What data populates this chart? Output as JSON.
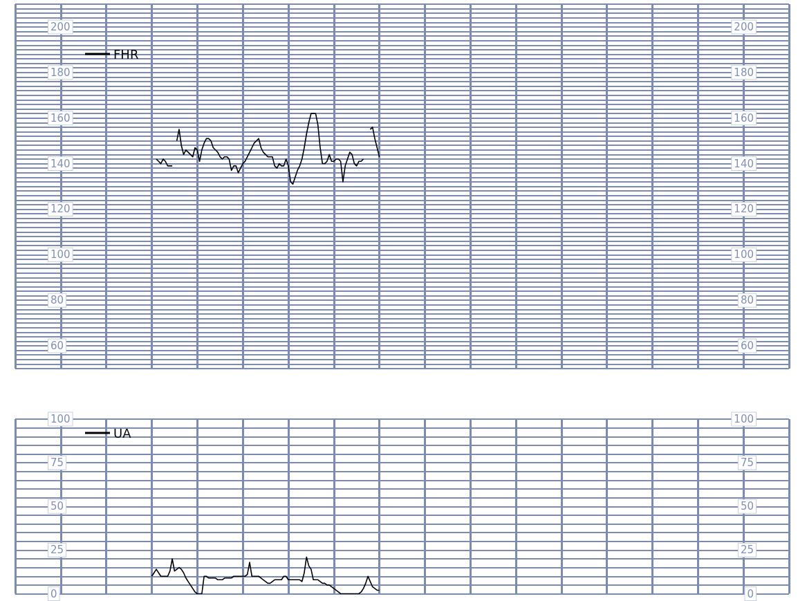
{
  "chart_data": [
    {
      "type": "line",
      "categories": [
        null,
        null,
        null,
        null,
        null,
        null,
        null,
        null,
        null,
        null,
        null,
        null,
        null,
        null,
        null,
        null,
        null,
        null,
        null,
        null,
        null,
        null,
        null,
        null,
        null,
        null,
        null,
        null,
        null,
        null,
        null,
        null,
        null,
        null,
        null,
        null,
        null,
        null,
        null,
        null,
        null,
        null,
        null,
        null,
        null,
        null,
        null,
        null,
        null,
        null,
        null,
        null,
        null,
        null,
        null,
        null,
        null,
        null,
        null,
        null,
        null,
        null,
        null,
        null,
        null,
        null,
        null,
        null,
        null,
        null,
        null,
        null,
        null,
        null,
        null,
        null,
        null,
        null,
        null,
        null,
        null,
        null,
        null,
        null,
        null,
        null,
        null,
        null,
        null,
        null,
        null,
        null,
        null,
        null,
        null,
        null,
        null,
        null,
        null,
        null,
        null,
        null,
        null,
        null,
        null,
        null,
        null,
        null,
        null,
        null,
        null,
        null,
        null,
        null,
        null,
        null,
        null,
        null,
        null,
        null,
        null,
        null,
        null,
        null,
        null,
        null,
        null,
        null,
        null,
        null,
        null,
        null,
        null,
        null,
        null,
        null,
        null,
        null,
        null,
        null,
        null,
        null,
        null,
        null,
        null,
        null,
        null,
        null,
        null,
        null,
        null,
        null,
        null,
        null,
        null,
        null,
        null,
        null,
        null,
        null,
        null,
        null,
        null,
        null,
        null,
        null,
        null,
        null,
        null,
        null,
        null,
        null,
        null,
        null,
        null,
        null,
        null,
        null,
        null,
        null,
        null,
        null,
        null,
        null,
        null,
        null,
        null,
        null,
        null,
        null,
        null,
        null,
        null,
        null,
        null,
        null,
        null,
        null,
        null,
        null,
        null,
        null,
        null,
        null,
        null,
        null,
        null,
        null,
        null,
        null,
        null,
        null,
        null,
        null,
        null,
        null,
        null,
        null,
        null,
        null,
        null,
        null,
        null,
        null,
        null,
        null,
        null,
        null,
        null,
        null,
        null,
        null,
        null,
        null,
        null,
        null,
        null,
        null,
        null,
        null,
        null,
        null,
        null,
        null,
        null,
        null,
        null,
        null,
        null,
        null,
        null,
        null,
        null,
        null,
        null,
        null,
        null,
        null,
        null,
        null,
        null,
        null,
        null,
        null,
        null,
        null,
        null,
        null,
        null,
        null,
        null,
        null,
        null,
        null,
        null,
        null,
        null,
        null,
        null,
        null,
        null,
        null,
        null,
        null,
        null,
        null,
        null,
        null,
        null,
        null,
        null,
        null,
        null,
        null,
        null,
        null,
        null,
        null,
        null,
        null,
        null,
        null,
        null,
        null,
        null,
        null,
        null,
        null,
        null,
        null,
        null,
        null,
        null,
        null,
        null,
        null,
        null,
        null,
        null,
        null,
        null,
        null,
        null,
        null,
        null,
        null,
        null,
        null,
        null,
        null,
        null,
        null,
        null,
        null,
        null,
        null,
        null,
        null,
        null,
        null,
        null
      ],
      "ylim": [
        50,
        210
      ],
      "yticks": [
        {
          "value": 50,
          "label": null
        },
        {
          "value": 52,
          "label": null
        },
        {
          "value": 54,
          "label": null
        },
        {
          "value": 56,
          "label": null
        },
        {
          "value": 58,
          "label": null
        },
        60,
        {
          "value": 62,
          "label": null
        },
        {
          "value": 64,
          "label": null
        },
        {
          "value": 66,
          "label": null
        },
        {
          "value": 68,
          "label": null
        },
        {
          "value": 70,
          "label": null
        },
        {
          "value": 72,
          "label": null
        },
        {
          "value": 74,
          "label": null
        },
        {
          "value": 76,
          "label": null
        },
        {
          "value": 78,
          "label": null
        },
        80,
        {
          "value": 82,
          "label": null
        },
        {
          "value": 84,
          "label": null
        },
        {
          "value": 86,
          "label": null
        },
        {
          "value": 88,
          "label": null
        },
        {
          "value": 90,
          "label": null
        },
        {
          "value": 92,
          "label": null
        },
        {
          "value": 94,
          "label": null
        },
        {
          "value": 96,
          "label": null
        },
        {
          "value": 98,
          "label": null
        },
        100,
        {
          "value": 102,
          "label": null
        },
        {
          "value": 104,
          "label": null
        },
        {
          "value": 106,
          "label": null
        },
        {
          "value": 108,
          "label": null
        },
        {
          "value": 110,
          "label": null
        },
        {
          "value": 112,
          "label": null
        },
        {
          "value": 114,
          "label": null
        },
        {
          "value": 116,
          "label": null
        },
        {
          "value": 118,
          "label": null
        },
        120,
        {
          "value": 122,
          "label": null
        },
        {
          "value": 124,
          "label": null
        },
        {
          "value": 126,
          "label": null
        },
        {
          "value": 128,
          "label": null
        },
        {
          "value": 130,
          "label": null
        },
        {
          "value": 132,
          "label": null
        },
        {
          "value": 134,
          "label": null
        },
        {
          "value": 136,
          "label": null
        },
        {
          "value": 138,
          "label": null
        },
        140,
        {
          "value": 142,
          "label": null
        },
        {
          "value": 144,
          "label": null
        },
        {
          "value": 146,
          "label": null
        },
        {
          "value": 148,
          "label": null
        },
        {
          "value": 150,
          "label": null
        },
        {
          "value": 152,
          "label": null
        },
        {
          "value": 154,
          "label": null
        },
        {
          "value": 156,
          "label": null
        },
        {
          "value": 158,
          "label": null
        },
        160,
        {
          "value": 162,
          "label": null
        },
        {
          "value": 164,
          "label": null
        },
        {
          "value": 166,
          "label": null
        },
        {
          "value": 168,
          "label": null
        },
        {
          "value": 170,
          "label": null
        },
        {
          "value": 172,
          "label": null
        },
        {
          "value": 174,
          "label": null
        },
        {
          "value": 176,
          "label": null
        },
        {
          "value": 178,
          "label": null
        },
        180,
        {
          "value": 182,
          "label": null
        },
        {
          "value": 184,
          "label": null
        },
        {
          "value": 186,
          "label": null
        },
        {
          "value": 188,
          "label": null
        },
        {
          "value": 190,
          "label": null
        },
        {
          "value": 192,
          "label": null
        },
        {
          "value": 194,
          "label": null
        },
        {
          "value": 196,
          "label": null
        },
        {
          "value": 198,
          "label": null
        },
        200,
        {
          "value": 202,
          "label": null
        },
        {
          "value": 204,
          "label": null
        },
        {
          "value": 206,
          "label": null
        },
        {
          "value": 208,
          "label": null
        },
        {
          "value": 210,
          "label": null
        }
      ],
      "y2lim": [
        50,
        210
      ],
      "y2ticks": [
        60,
        80,
        100,
        120,
        140,
        160,
        180,
        200
      ],
      "tick_labels": "y",
      "grid": true,
      "legend": "top left",
      "marker": "none",
      "line_style": "solid",
      "series": [
        {
          "name": "FHR",
          "color": "#000000",
          "values": [
            null,
            null,
            null,
            null,
            null,
            null,
            null,
            null,
            null,
            null,
            null,
            null,
            null,
            null,
            null,
            null,
            null,
            null,
            null,
            null,
            null,
            null,
            null,
            null,
            null,
            null,
            null,
            null,
            null,
            null,
            null,
            null,
            null,
            null,
            null,
            null,
            null,
            null,
            null,
            null,
            null,
            null,
            null,
            null,
            null,
            null,
            null,
            null,
            null,
            null,
            null,
            null,
            null,
            null,
            null,
            null,
            null,
            null,
            null,
            null,
            null,
            null,
            142,
            141,
            140,
            142,
            141,
            139,
            139,
            139,
            null,
            150,
            155,
            148,
            144,
            146,
            145,
            144,
            143,
            147,
            146,
            141,
            146,
            149,
            151,
            151,
            150,
            147,
            146,
            145,
            143,
            142,
            143,
            143,
            142,
            137,
            139,
            139,
            136,
            138,
            140,
            141,
            143,
            145,
            147,
            149,
            150,
            151,
            147,
            145,
            144,
            143,
            143,
            143,
            139,
            138,
            140,
            139,
            139,
            142,
            139,
            132,
            131,
            134,
            137,
            139,
            142,
            147,
            153,
            158,
            162,
            162,
            162,
            157,
            147,
            140,
            140,
            141,
            144,
            141,
            141,
            142,
            142,
            141,
            132,
            139,
            142,
            145,
            144,
            140,
            139,
            141,
            141,
            142,
            null,
            null,
            155,
            156,
            151,
            147,
            143,
            null,
            null,
            null,
            null,
            null,
            null,
            null,
            null,
            null,
            null,
            null,
            null,
            null,
            null,
            null,
            null,
            null,
            null,
            null,
            null,
            null,
            null,
            null,
            null,
            null,
            null,
            null,
            null,
            null,
            null,
            null,
            null,
            null,
            null,
            null,
            null,
            null,
            null,
            null,
            null,
            null,
            null,
            null,
            null,
            null,
            null,
            null,
            null,
            null,
            null,
            null,
            null,
            null,
            null,
            null,
            null,
            null,
            null,
            null,
            null,
            null,
            null,
            null,
            null,
            null,
            null,
            null,
            null,
            null,
            null,
            null,
            null,
            null,
            null,
            null,
            null,
            null,
            null,
            null,
            null,
            null,
            null,
            null,
            null,
            null,
            null,
            null,
            null,
            null,
            null,
            null,
            null,
            null,
            null,
            null,
            null,
            null,
            null,
            null,
            null,
            null,
            null,
            null,
            null,
            null,
            null,
            null,
            null,
            null,
            null,
            null,
            null,
            null,
            null,
            null,
            null,
            null,
            null,
            null,
            null,
            null,
            null,
            null,
            null,
            null,
            null,
            null,
            null,
            null,
            null,
            null,
            null,
            null,
            null,
            null,
            null,
            null,
            null,
            null,
            null,
            null,
            null,
            null,
            null,
            null,
            null,
            null,
            null,
            null,
            null,
            null,
            null,
            null,
            null,
            null,
            null,
            null,
            null,
            null,
            null,
            null,
            null,
            null,
            null,
            null,
            null,
            null,
            null,
            null,
            null,
            null,
            null,
            null,
            null,
            null,
            null,
            null,
            null,
            null,
            null
          ]
        }
      ]
    },
    {
      "type": "line",
      "categories": [
        null,
        null,
        null,
        null,
        null,
        null,
        null,
        null,
        null,
        null,
        null,
        null,
        null,
        null,
        null,
        null,
        null,
        null,
        null,
        null,
        null,
        null,
        null,
        null,
        null,
        null,
        null,
        null,
        null,
        null,
        null,
        null,
        null,
        null,
        null,
        null,
        null,
        null,
        null,
        null,
        null,
        null,
        null,
        null,
        null,
        null,
        null,
        null,
        null,
        null,
        null,
        null,
        null,
        null,
        null,
        null,
        null,
        null,
        null,
        null,
        null,
        null,
        null,
        null,
        null,
        null,
        null,
        null,
        null,
        null,
        null,
        null,
        null,
        null,
        null,
        null,
        null,
        null,
        null,
        null,
        null,
        null,
        null,
        null,
        null,
        null,
        null,
        null,
        null,
        null,
        null,
        null,
        null,
        null,
        null,
        null,
        null,
        null,
        null,
        null,
        null,
        null,
        null,
        null,
        null,
        null,
        null,
        null,
        null,
        null,
        null,
        null,
        null,
        null,
        null,
        null,
        null,
        null,
        null,
        null,
        null,
        null,
        null,
        null,
        null,
        null,
        null,
        null,
        null,
        null,
        null,
        null,
        null,
        null,
        null,
        null,
        null,
        null,
        null,
        null,
        null,
        null,
        null,
        null,
        null,
        null,
        null,
        null,
        null,
        null,
        null,
        null,
        null,
        null,
        null,
        null,
        null,
        null,
        null,
        null,
        null,
        null,
        null,
        null,
        null,
        null,
        null,
        null,
        null,
        null,
        null,
        null,
        null,
        null,
        null,
        null,
        null,
        null,
        null,
        null,
        null,
        null,
        null,
        null,
        null,
        null,
        null,
        null,
        null,
        null,
        null,
        null,
        null,
        null,
        null,
        null,
        null,
        null,
        null,
        null,
        null,
        null,
        null,
        null,
        null,
        null,
        null,
        null,
        null,
        null,
        null,
        null,
        null,
        null,
        null,
        null,
        null,
        null,
        null,
        null,
        null,
        null,
        null,
        null,
        null,
        null,
        null,
        null,
        null,
        null,
        null,
        null,
        null,
        null,
        null,
        null,
        null,
        null,
        null,
        null,
        null,
        null,
        null,
        null,
        null,
        null,
        null,
        null,
        null,
        null,
        null,
        null,
        null,
        null,
        null,
        null,
        null,
        null,
        null,
        null,
        null,
        null,
        null,
        null,
        null,
        null,
        null,
        null,
        null,
        null,
        null,
        null,
        null,
        null,
        null,
        null,
        null,
        null,
        null,
        null,
        null,
        null,
        null,
        null,
        null,
        null,
        null,
        null,
        null,
        null,
        null,
        null,
        null,
        null,
        null,
        null,
        null,
        null,
        null,
        null,
        null,
        null,
        null,
        null,
        null,
        null,
        null,
        null,
        null,
        null,
        null,
        null,
        null,
        null,
        null,
        null,
        null,
        null,
        null,
        null,
        null,
        null,
        null,
        null,
        null,
        null,
        null,
        null,
        null,
        null,
        null,
        null,
        null,
        null,
        null,
        null,
        null,
        null,
        null,
        null,
        null
      ],
      "ylim": [
        0,
        100
      ],
      "yticks": [
        0,
        {
          "value": 5,
          "label": null
        },
        {
          "value": 10,
          "label": null
        },
        {
          "value": 15,
          "label": null
        },
        {
          "value": 20,
          "label": null
        },
        25,
        {
          "value": 30,
          "label": null
        },
        {
          "value": 35,
          "label": null
        },
        {
          "value": 40,
          "label": null
        },
        {
          "value": 45,
          "label": null
        },
        50,
        {
          "value": 55,
          "label": null
        },
        {
          "value": 60,
          "label": null
        },
        {
          "value": 65,
          "label": null
        },
        {
          "value": 70,
          "label": null
        },
        75,
        {
          "value": 80,
          "label": null
        },
        {
          "value": 85,
          "label": null
        },
        {
          "value": 90,
          "label": null
        },
        {
          "value": 95,
          "label": null
        },
        100
      ],
      "y2lim": [
        0,
        100
      ],
      "y2ticks": [
        0,
        25,
        50,
        75,
        100
      ],
      "tick_labels": "y",
      "grid": true,
      "legend": "top left",
      "marker": "none",
      "line_style": "solid",
      "series": [
        {
          "name": "UA",
          "color": "#000000",
          "values": [
            null,
            null,
            null,
            null,
            null,
            null,
            null,
            null,
            null,
            null,
            null,
            null,
            null,
            null,
            null,
            null,
            null,
            null,
            null,
            null,
            null,
            null,
            null,
            null,
            null,
            null,
            null,
            null,
            null,
            null,
            null,
            null,
            null,
            null,
            null,
            null,
            null,
            null,
            null,
            null,
            null,
            null,
            null,
            null,
            null,
            null,
            null,
            null,
            null,
            null,
            null,
            null,
            null,
            null,
            null,
            null,
            null,
            null,
            null,
            null,
            10,
            12,
            14,
            12,
            10,
            10,
            10,
            10,
            13,
            20,
            13,
            14,
            15,
            14,
            12,
            9,
            7,
            5,
            3,
            1,
            0,
            0,
            0,
            10,
            10,
            9,
            9,
            9,
            9,
            8,
            8,
            8,
            9,
            9,
            9,
            9,
            10,
            10,
            10,
            10,
            10,
            10,
            11,
            18,
            10,
            10,
            10,
            10,
            9,
            8,
            7,
            6,
            6,
            7,
            8,
            8,
            8,
            8,
            10,
            10,
            8,
            8,
            8,
            8,
            8,
            8,
            7,
            12,
            21,
            16,
            14,
            8,
            8,
            8,
            7,
            6,
            6,
            5,
            5,
            4,
            3,
            2,
            1,
            0,
            0,
            0,
            0,
            0,
            0,
            0,
            0,
            0,
            1,
            3,
            6,
            10,
            7,
            4,
            3,
            2,
            2,
            null,
            null,
            null,
            null,
            null,
            null,
            null,
            null,
            null,
            null,
            null,
            null,
            null,
            null,
            null,
            null,
            null,
            null,
            null,
            null,
            null,
            null,
            null,
            null,
            null,
            null,
            null,
            null,
            null,
            null,
            null,
            null,
            null,
            null,
            null,
            null,
            null,
            null,
            null,
            null,
            null,
            null,
            null,
            null,
            null,
            null,
            null,
            null,
            null,
            null,
            null,
            null,
            null,
            null,
            null,
            null,
            null,
            null,
            null,
            null,
            null,
            null,
            null,
            null,
            null,
            null,
            null,
            null,
            null,
            null,
            null,
            null,
            null,
            null,
            null,
            null,
            null,
            null,
            null,
            null,
            null,
            null,
            null,
            null,
            null,
            null,
            null,
            null,
            null,
            null,
            null,
            null,
            null,
            null,
            null,
            null,
            null,
            null,
            null,
            null,
            null,
            null,
            null,
            null,
            null,
            null,
            null,
            null,
            null,
            null,
            null,
            null,
            null,
            null,
            null,
            null,
            null,
            null,
            null,
            null,
            null,
            null,
            null,
            null,
            null,
            null,
            null,
            null,
            null,
            null,
            null,
            null,
            null,
            null,
            null,
            null,
            null,
            null,
            null,
            null,
            null,
            null,
            null,
            null,
            null,
            null,
            null,
            null,
            null,
            null,
            null,
            null,
            null,
            null,
            null,
            null,
            null,
            null,
            null,
            null,
            null,
            null,
            null,
            null,
            null,
            null,
            null,
            null,
            null,
            null,
            null,
            null,
            null,
            null,
            null,
            null,
            null,
            null,
            null,
            null
          ]
        }
      ]
    }
  ]
}
